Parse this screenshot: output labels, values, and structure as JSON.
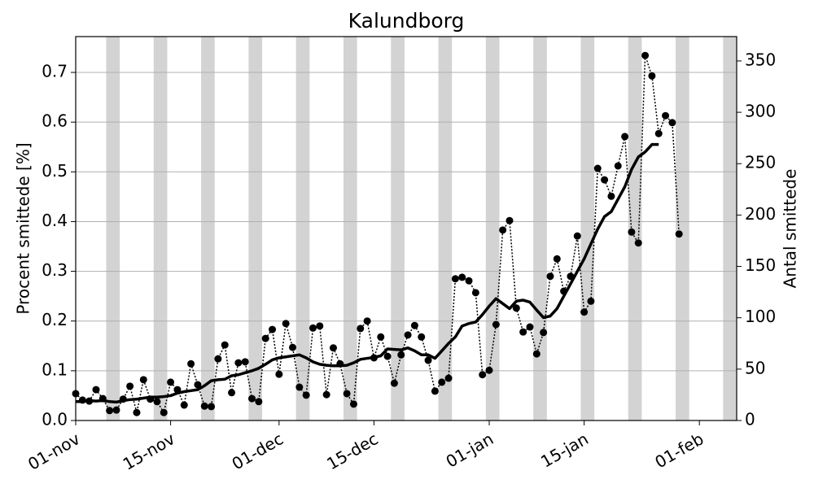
{
  "chart_data": {
    "type": "line",
    "title": "Kalundborg",
    "ylabel": "Procent smittede [%]",
    "y2label": "Antal smittede",
    "x": [
      0,
      1,
      2,
      3,
      4,
      5,
      6,
      7,
      8,
      9,
      10,
      11,
      12,
      13,
      14,
      15,
      16,
      17,
      18,
      19,
      20,
      21,
      22,
      23,
      24,
      25,
      26,
      27,
      28,
      29,
      30,
      31,
      32,
      33,
      34,
      35,
      36,
      37,
      38,
      39,
      40,
      41,
      42,
      43,
      44,
      45,
      46,
      47,
      48,
      49,
      50,
      51,
      52,
      53,
      54,
      55,
      56,
      57,
      58,
      59,
      60,
      61,
      62,
      63,
      64,
      65,
      66,
      67,
      68,
      69,
      70,
      71,
      72,
      73,
      74,
      75,
      76,
      77,
      78,
      79,
      80,
      81,
      82,
      83,
      84,
      85,
      86,
      87,
      88,
      89
    ],
    "series": [
      {
        "style": "dotted-markers",
        "color": "#000000",
        "values": [
          0.054,
          0.041,
          0.039,
          0.062,
          0.044,
          0.02,
          0.021,
          0.043,
          0.069,
          0.016,
          0.082,
          0.043,
          0.038,
          0.016,
          0.077,
          0.062,
          0.031,
          0.114,
          0.072,
          0.029,
          0.028,
          0.124,
          0.152,
          0.056,
          0.116,
          0.118,
          0.044,
          0.038,
          0.165,
          0.183,
          0.093,
          0.195,
          0.147,
          0.067,
          0.051,
          0.186,
          0.19,
          0.052,
          0.146,
          0.114,
          0.054,
          0.033,
          0.185,
          0.2,
          0.126,
          0.168,
          0.129,
          0.075,
          0.132,
          0.172,
          0.191,
          0.168,
          0.121,
          0.059,
          0.077,
          0.085,
          0.285,
          0.288,
          0.281,
          0.257,
          0.092,
          0.101,
          0.193,
          0.383,
          0.402,
          0.226,
          0.178,
          0.188,
          0.134,
          0.177,
          0.29,
          0.325,
          0.26,
          0.29,
          0.371,
          0.218,
          0.24,
          0.507,
          0.484,
          0.451,
          0.512,
          0.571,
          0.379,
          0.357,
          0.734,
          0.693,
          0.577,
          0.613,
          0.599,
          0.375
        ]
      },
      {
        "style": "solid",
        "color": "#000000",
        "values": [
          0.038,
          0.038,
          0.04,
          0.039,
          0.04,
          0.038,
          0.037,
          0.04,
          0.042,
          0.043,
          0.045,
          0.047,
          0.047,
          0.048,
          0.05,
          0.055,
          0.058,
          0.06,
          0.062,
          0.07,
          0.08,
          0.082,
          0.083,
          0.09,
          0.092,
          0.096,
          0.1,
          0.105,
          0.113,
          0.122,
          0.126,
          0.128,
          0.13,
          0.132,
          0.126,
          0.118,
          0.113,
          0.111,
          0.11,
          0.11,
          0.111,
          0.116,
          0.123,
          0.125,
          0.127,
          0.13,
          0.144,
          0.143,
          0.142,
          0.146,
          0.14,
          0.132,
          0.132,
          0.125,
          0.14,
          0.155,
          0.168,
          0.19,
          0.195,
          0.198,
          0.213,
          0.23,
          0.245,
          0.235,
          0.225,
          0.24,
          0.242,
          0.238,
          0.222,
          0.207,
          0.21,
          0.225,
          0.25,
          0.275,
          0.3,
          0.325,
          0.355,
          0.385,
          0.41,
          0.42,
          0.445,
          0.47,
          0.505,
          0.53,
          0.54,
          0.555,
          0.555,
          null,
          null,
          null
        ]
      }
    ],
    "shaded_x_ranges": [
      [
        4.5,
        6.5
      ],
      [
        11.5,
        13.5
      ],
      [
        18.5,
        20.5
      ],
      [
        25.5,
        27.5
      ],
      [
        32.5,
        34.5
      ],
      [
        39.5,
        41.5
      ],
      [
        46.5,
        48.5
      ],
      [
        53.5,
        55.5
      ],
      [
        60.5,
        62.5
      ],
      [
        67.5,
        69.5
      ],
      [
        74.5,
        76.5
      ],
      [
        81.5,
        83.5
      ],
      [
        88.5,
        90.5
      ],
      [
        95.5,
        97.5
      ]
    ],
    "shade_color": "#d3d3d3",
    "xlim": [
      0,
      97.5
    ],
    "xticks": [
      {
        "value": 0,
        "label": "01-nov"
      },
      {
        "value": 14,
        "label": "15-nov"
      },
      {
        "value": 30,
        "label": "01-dec"
      },
      {
        "value": 44,
        "label": "15-dec"
      },
      {
        "value": 61,
        "label": "01-jan"
      },
      {
        "value": 75,
        "label": "15-jan"
      },
      {
        "value": 92,
        "label": "01-feb"
      }
    ],
    "ylim": [
      0,
      0.772
    ],
    "yticks": [
      {
        "value": 0,
        "label": "0.0"
      },
      0.1,
      0.2,
      0.3,
      0.4,
      0.5,
      0.6,
      0.7
    ],
    "y2lim": [
      0,
      373.7
    ],
    "y2ticks": [
      0,
      50,
      100,
      150,
      200,
      250,
      300,
      350
    ],
    "grid": true
  }
}
